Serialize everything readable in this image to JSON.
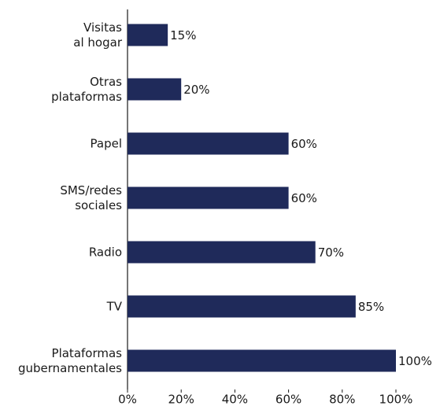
{
  "chart_data": {
    "type": "bar",
    "orientation": "horizontal",
    "categories": [
      "Visitas\nal hogar",
      "Otras\nplataformas",
      "Papel",
      "SMS/redes\nsociales",
      "Radio",
      "TV",
      "Plataformas\ngubernamentales"
    ],
    "values": [
      15,
      20,
      60,
      60,
      70,
      85,
      100
    ],
    "value_labels": [
      "15%",
      "20%",
      "60%",
      "60%",
      "70%",
      "85%",
      "100%"
    ],
    "color": "#1f2a5a",
    "xlim": [
      0,
      100
    ],
    "xticks": [
      {
        "value": 0,
        "label": "0%"
      },
      {
        "value": 20,
        "label": "20%"
      },
      {
        "value": 40,
        "label": "40%"
      },
      {
        "value": 60,
        "label": "60%"
      },
      {
        "value": 80,
        "label": "80%"
      },
      {
        "value": 100,
        "label": "100%"
      }
    ],
    "grid": false
  }
}
